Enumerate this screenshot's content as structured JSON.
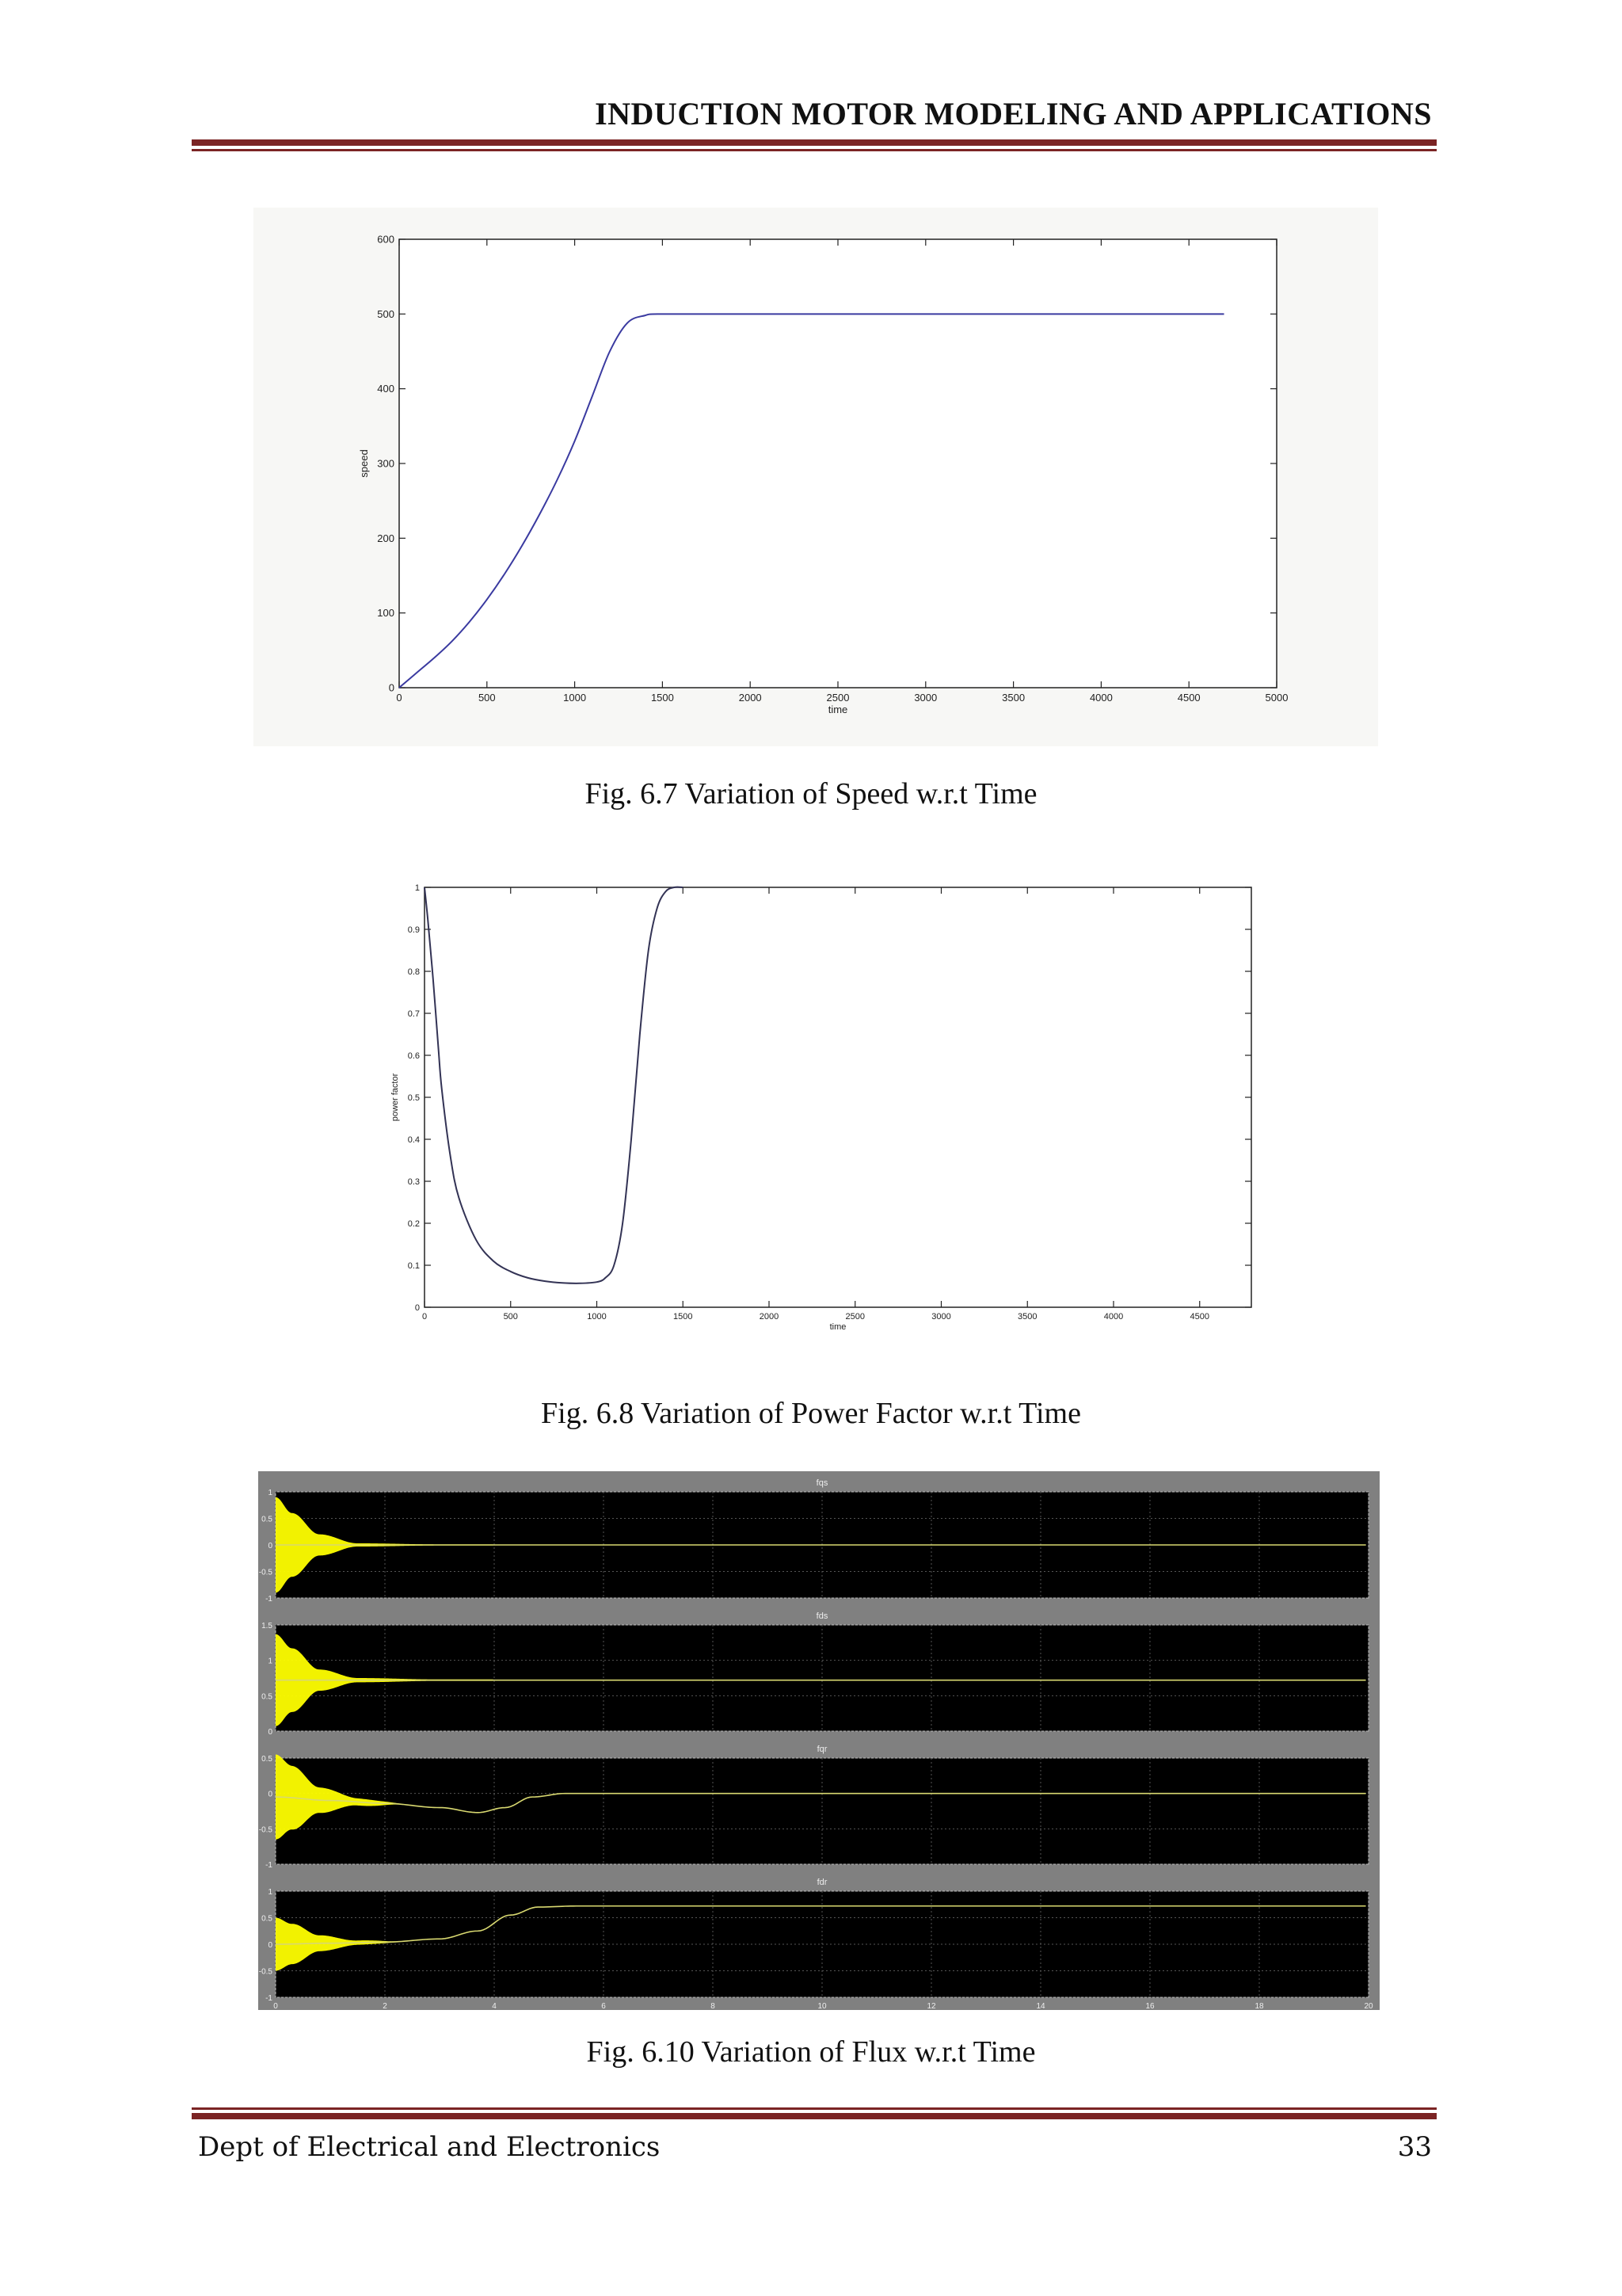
{
  "header": {
    "title": "INDUCTION MOTOR MODELING AND APPLICATIONS"
  },
  "footer": {
    "dept": "Dept of Electrical and Electronics",
    "page_number": "33"
  },
  "figures": [
    {
      "caption": "Fig. 6.7 Variation of Speed w.r.t Time"
    },
    {
      "caption": "Fig. 6.8 Variation of Power Factor w.r.t Time"
    },
    {
      "caption": "Fig. 6.10 Variation of Flux w.r.t Time"
    }
  ],
  "chart_data": [
    {
      "type": "line",
      "xlabel": "time",
      "ylabel": "speed",
      "xlim": [
        0,
        5000
      ],
      "ylim": [
        0,
        600
      ],
      "xticks": [
        "0",
        "500",
        "1000",
        "1500",
        "2000",
        "2500",
        "3000",
        "3500",
        "4000",
        "4500",
        "5000"
      ],
      "yticks": [
        "0",
        "100",
        "200",
        "300",
        "400",
        "500",
        "600"
      ],
      "color": "#3a3aa0",
      "x": [
        0,
        100,
        200,
        300,
        400,
        500,
        600,
        700,
        800,
        900,
        1000,
        1100,
        1200,
        1300,
        1400,
        1500,
        2000,
        3000,
        4000,
        4700
      ],
      "y": [
        0,
        20,
        40,
        62,
        88,
        118,
        152,
        190,
        232,
        278,
        330,
        390,
        450,
        488,
        498,
        500,
        500,
        500,
        500,
        500
      ]
    },
    {
      "type": "line",
      "xlabel": "time",
      "ylabel": "power factor",
      "xlim": [
        0,
        4800
      ],
      "ylim": [
        0,
        1
      ],
      "xticks": [
        "0",
        "500",
        "1000",
        "1500",
        "2000",
        "2500",
        "3000",
        "3500",
        "4000",
        "4500"
      ],
      "yticks": [
        "0",
        "0.1",
        "0.2",
        "0.3",
        "0.4",
        "0.5",
        "0.6",
        "0.7",
        "0.8",
        "0.9",
        "1"
      ],
      "color": "#333355",
      "x": [
        0,
        20,
        50,
        80,
        100,
        150,
        200,
        300,
        400,
        500,
        600,
        700,
        800,
        900,
        1000,
        1050,
        1100,
        1150,
        1200,
        1250,
        1300,
        1350,
        1400,
        1450,
        1500
      ],
      "y": [
        1,
        0.92,
        0.78,
        0.62,
        0.52,
        0.36,
        0.26,
        0.16,
        0.11,
        0.085,
        0.07,
        0.062,
        0.058,
        0.057,
        0.06,
        0.07,
        0.1,
        0.2,
        0.4,
        0.65,
        0.85,
        0.95,
        0.99,
        1.0,
        1.0
      ]
    },
    {
      "type": "line",
      "title_panels": [
        "fqs",
        "fds",
        "fqr",
        "fdr"
      ],
      "xlim": [
        0,
        20
      ],
      "xticks": [
        "0",
        "2",
        "4",
        "6",
        "8",
        "10",
        "12",
        "14",
        "16",
        "18",
        "20"
      ],
      "color": "#ffff00",
      "panels": [
        {
          "name": "fqs",
          "ylim": [
            -1,
            1
          ],
          "yticks": [
            "-1",
            "-0.5",
            "0",
            "0.5",
            "1"
          ],
          "envelope": [
            [
              0,
              0.9
            ],
            [
              0.3,
              0.6
            ],
            [
              0.8,
              0.2
            ],
            [
              1.5,
              0.03
            ],
            [
              3,
              0.01
            ],
            [
              20,
              0.005
            ]
          ],
          "center": [
            [
              0,
              0
            ],
            [
              20,
              0
            ]
          ]
        },
        {
          "name": "fds",
          "ylim": [
            0,
            1.5
          ],
          "yticks": [
            "0",
            "0.5",
            "1",
            "1.5"
          ],
          "envelope": [
            [
              0,
              0.65
            ],
            [
              0.3,
              0.45
            ],
            [
              0.8,
              0.15
            ],
            [
              1.5,
              0.03
            ],
            [
              3,
              0.01
            ],
            [
              20,
              0.005
            ]
          ],
          "center": [
            [
              0,
              0.72
            ],
            [
              20,
              0.72
            ]
          ]
        },
        {
          "name": "fqr",
          "ylim": [
            -1,
            0.5
          ],
          "yticks": [
            "-1",
            "-0.5",
            "0",
            "0.5"
          ],
          "envelope": [
            [
              0,
              0.6
            ],
            [
              0.3,
              0.45
            ],
            [
              0.8,
              0.18
            ],
            [
              1.5,
              0.05
            ],
            [
              2.5,
              0.0
            ],
            [
              20,
              0
            ]
          ],
          "center": [
            [
              0,
              -0.05
            ],
            [
              1,
              -0.1
            ],
            [
              2,
              -0.14
            ],
            [
              3,
              -0.2
            ],
            [
              3.7,
              -0.27
            ],
            [
              4.2,
              -0.2
            ],
            [
              4.7,
              -0.05
            ],
            [
              5.3,
              0
            ],
            [
              20,
              0
            ]
          ]
        },
        {
          "name": "fdr",
          "ylim": [
            -1,
            1
          ],
          "yticks": [
            "-1",
            "-0.5",
            "0",
            "0.5",
            "1"
          ],
          "envelope": [
            [
              0,
              0.5
            ],
            [
              0.3,
              0.38
            ],
            [
              0.8,
              0.15
            ],
            [
              1.5,
              0.04
            ],
            [
              2.5,
              0.0
            ],
            [
              20,
              0
            ]
          ],
          "center": [
            [
              0,
              0
            ],
            [
              1,
              0.02
            ],
            [
              2,
              0.04
            ],
            [
              3,
              0.1
            ],
            [
              3.7,
              0.25
            ],
            [
              4.3,
              0.55
            ],
            [
              4.8,
              0.7
            ],
            [
              5.5,
              0.72
            ],
            [
              20,
              0.72
            ]
          ]
        }
      ]
    }
  ]
}
